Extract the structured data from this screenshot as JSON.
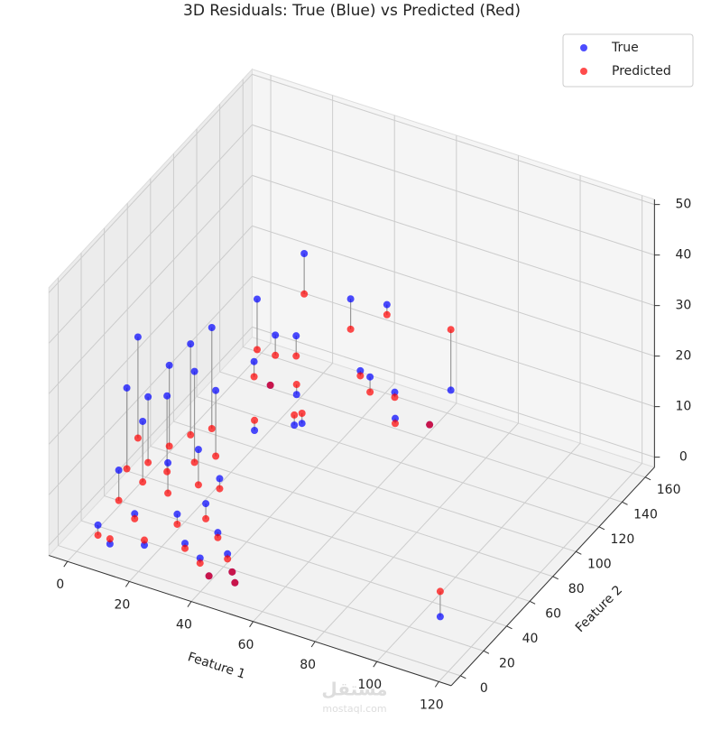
{
  "chart_data": {
    "type": "scatter3d",
    "title": "3D Residuals: True (Blue) vs Predicted (Red)",
    "x_label": "Feature 1",
    "y_label": "Feature 2",
    "xlim": [
      -6,
      124
    ],
    "ylim": [
      -8,
      168
    ],
    "zlim": [
      -2,
      51
    ],
    "xticks": [
      0,
      20,
      40,
      60,
      80,
      100,
      120
    ],
    "yticks": [
      0,
      20,
      40,
      60,
      80,
      100,
      120,
      140,
      160
    ],
    "zticks": [
      0,
      10,
      20,
      30,
      40,
      50
    ],
    "grid": true,
    "legend": "upper right",
    "residual_color": "#999999",
    "x": [
      5,
      8,
      10,
      12,
      15,
      18,
      20,
      22,
      25,
      28,
      30,
      32,
      35,
      38,
      40,
      42,
      45,
      15,
      20,
      10,
      25,
      5,
      3,
      48,
      50,
      30,
      35,
      20,
      25,
      30,
      22,
      28,
      33,
      18,
      26,
      31,
      40,
      45,
      50,
      55,
      48,
      60,
      100,
      110,
      70,
      25
    ],
    "y": [
      5,
      15,
      2,
      25,
      10,
      30,
      5,
      20,
      35,
      12,
      25,
      8,
      18,
      5,
      15,
      2,
      10,
      40,
      45,
      35,
      50,
      30,
      45,
      6,
      3,
      40,
      30,
      100,
      105,
      110,
      95,
      115,
      100,
      108,
      98,
      112,
      130,
      125,
      120,
      128,
      140,
      115,
      56,
      20,
      118,
      130
    ],
    "series": [
      {
        "name": "True",
        "color": "#0000ff",
        "values": [
          3,
          12,
          1,
          20,
          6,
          25,
          2,
          15,
          30,
          8,
          18,
          4,
          10,
          3,
          6,
          1,
          4,
          28,
          32,
          22,
          35,
          24,
          30,
          2,
          1,
          26,
          12,
          15,
          20,
          8,
          3,
          18,
          5,
          25,
          12,
          2,
          24,
          12,
          13,
          9,
          22,
          8,
          36,
          2,
          8,
          30
        ]
      },
      {
        "name": "Predicted",
        "color": "#ff0000",
        "values": [
          1,
          6,
          2,
          8,
          5,
          10,
          3,
          9,
          12,
          6,
          11,
          3,
          7,
          2,
          5,
          1,
          3,
          12,
          14,
          9,
          15,
          8,
          10,
          2,
          1,
          13,
          10,
          12,
          16,
          10,
          5,
          14,
          7,
          15,
          12,
          4,
          18,
          11,
          10,
          8,
          20,
          7,
          48,
          7,
          8,
          22
        ]
      }
    ],
    "watermark": [
      "مستقل",
      "mostaql.com"
    ]
  }
}
